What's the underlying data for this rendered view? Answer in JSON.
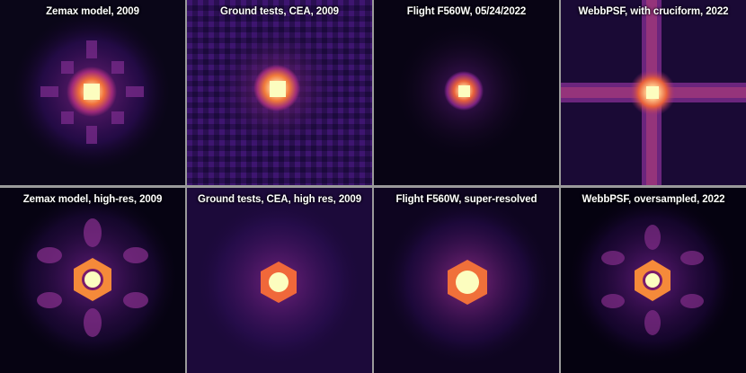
{
  "panels": [
    {
      "label": "Zemax model, 2009"
    },
    {
      "label": "Ground tests, CEA, 2009"
    },
    {
      "label": "Flight F560W, 05/24/2022"
    },
    {
      "label": "WebbPSF, with cruciform, 2022"
    },
    {
      "label": "Zemax model, high-res, 2009"
    },
    {
      "label": "Ground tests, CEA, high res, 2009"
    },
    {
      "label": "Flight F560W, super-resolved"
    },
    {
      "label": "WebbPSF, oversampled, 2022"
    }
  ],
  "colors": {
    "background": "#000000",
    "divider": "#9a9a9a",
    "colormap": [
      "#000004",
      "#1d1147",
      "#51127c",
      "#822681",
      "#b73779",
      "#e75263",
      "#fc8961",
      "#fec287",
      "#fcfdbf"
    ]
  }
}
